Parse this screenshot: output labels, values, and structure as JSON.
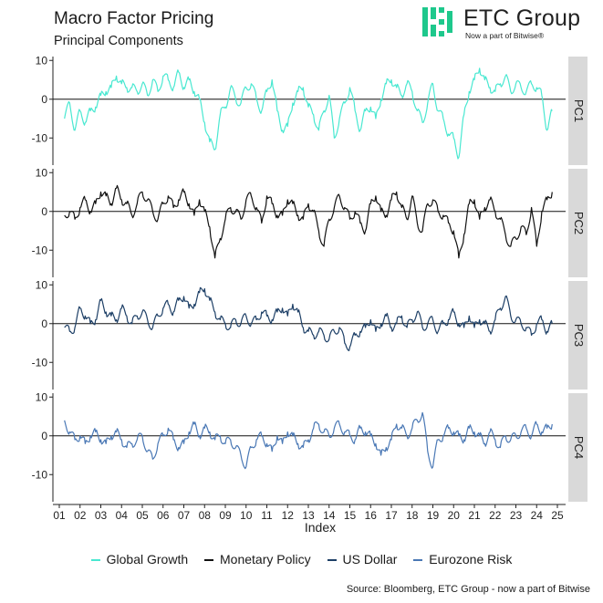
{
  "header": {
    "title": "Macro Factor Pricing",
    "subtitle": "Principal Components"
  },
  "brand": {
    "name": "ETC Group",
    "tagline": "Now a part of Bitwise®",
    "logo_color": "#1ec88c"
  },
  "footer": {
    "source": "Source: Bloomberg, ETC Group - now a part of Bitwise"
  },
  "chart_data": {
    "type": "line",
    "layout": "faceted",
    "xlabel": "Index",
    "x_ticks": [
      "01",
      "02",
      "03",
      "04",
      "05",
      "06",
      "07",
      "08",
      "09",
      "10",
      "11",
      "12",
      "13",
      "14",
      "15",
      "16",
      "17",
      "18",
      "19",
      "20",
      "21",
      "22",
      "23",
      "24",
      "25"
    ],
    "x_range": [
      2001.0,
      2025.0
    ],
    "ylim": [
      -17,
      11
    ],
    "y_ticks": [
      10,
      0,
      -10
    ],
    "grid": false,
    "zero_line": true,
    "legend_position": "bottom",
    "series": [
      {
        "name": "Global Growth",
        "panel": "PC1",
        "color": "#49e8d1",
        "x": [
          2001.25,
          2001.5,
          2001.75,
          2002.0,
          2002.25,
          2002.5,
          2002.75,
          2003.0,
          2003.25,
          2003.5,
          2003.75,
          2004.0,
          2004.25,
          2004.5,
          2004.75,
          2005.0,
          2005.25,
          2005.5,
          2005.75,
          2006.0,
          2006.25,
          2006.5,
          2006.75,
          2007.0,
          2007.25,
          2007.5,
          2007.75,
          2008.0,
          2008.25,
          2008.5,
          2008.75,
          2009.0,
          2009.25,
          2009.5,
          2009.75,
          2010.0,
          2010.25,
          2010.5,
          2010.75,
          2011.0,
          2011.25,
          2011.5,
          2011.75,
          2012.0,
          2012.25,
          2012.5,
          2012.75,
          2013.0,
          2013.25,
          2013.5,
          2013.75,
          2014.0,
          2014.25,
          2014.5,
          2014.75,
          2015.0,
          2015.25,
          2015.5,
          2015.75,
          2016.0,
          2016.25,
          2016.5,
          2016.75,
          2017.0,
          2017.25,
          2017.5,
          2017.75,
          2018.0,
          2018.25,
          2018.5,
          2018.75,
          2019.0,
          2019.25,
          2019.5,
          2019.75,
          2020.0,
          2020.25,
          2020.5,
          2020.75,
          2021.0,
          2021.25,
          2021.5,
          2021.75,
          2022.0,
          2022.25,
          2022.5,
          2022.75,
          2023.0,
          2023.25,
          2023.5,
          2023.75,
          2024.0,
          2024.25,
          2024.5,
          2024.75
        ],
        "values": [
          -5,
          -1,
          -8,
          -3,
          -6,
          -3,
          -2,
          1,
          2,
          3,
          6,
          4,
          3,
          3,
          2,
          4,
          1,
          5,
          2,
          6,
          5,
          3,
          7,
          3,
          5,
          2,
          0,
          -6,
          -11,
          -13,
          -4,
          -2,
          3,
          0,
          -1,
          3,
          4,
          0,
          -3,
          2,
          5,
          -3,
          -8,
          -7,
          -1,
          2,
          3,
          -2,
          -4,
          -8,
          -3,
          1,
          -10,
          -5,
          -1,
          3,
          -3,
          -8,
          -3,
          -2,
          -5,
          0,
          4,
          5,
          3,
          1,
          4,
          2,
          -3,
          -6,
          -1,
          4,
          -3,
          -5,
          -9,
          -10,
          -15,
          -4,
          2,
          5,
          8,
          5,
          3,
          2,
          4,
          6,
          2,
          4,
          3,
          2,
          4,
          3,
          1,
          -8,
          -3
        ]
      },
      {
        "name": "Monetary Policy",
        "panel": "PC2",
        "color": "#111111",
        "x": [
          2001.25,
          2001.5,
          2001.75,
          2002.0,
          2002.25,
          2002.5,
          2002.75,
          2003.0,
          2003.25,
          2003.5,
          2003.75,
          2004.0,
          2004.25,
          2004.5,
          2004.75,
          2005.0,
          2005.25,
          2005.5,
          2005.75,
          2006.0,
          2006.25,
          2006.5,
          2006.75,
          2007.0,
          2007.25,
          2007.5,
          2007.75,
          2008.0,
          2008.25,
          2008.5,
          2008.75,
          2009.0,
          2009.25,
          2009.5,
          2009.75,
          2010.0,
          2010.25,
          2010.5,
          2010.75,
          2011.0,
          2011.25,
          2011.5,
          2011.75,
          2012.0,
          2012.25,
          2012.5,
          2012.75,
          2013.0,
          2013.25,
          2013.5,
          2013.75,
          2014.0,
          2014.25,
          2014.5,
          2014.75,
          2015.0,
          2015.25,
          2015.5,
          2015.75,
          2016.0,
          2016.25,
          2016.5,
          2016.75,
          2017.0,
          2017.25,
          2017.5,
          2017.75,
          2018.0,
          2018.25,
          2018.5,
          2018.75,
          2019.0,
          2019.25,
          2019.5,
          2019.75,
          2020.0,
          2020.25,
          2020.5,
          2020.75,
          2021.0,
          2021.25,
          2021.5,
          2021.75,
          2022.0,
          2022.25,
          2022.5,
          2022.75,
          2023.0,
          2023.25,
          2023.5,
          2023.75,
          2024.0,
          2024.25,
          2024.5,
          2024.75
        ],
        "values": [
          -1,
          0,
          -2,
          1,
          3,
          0,
          2,
          5,
          4,
          2,
          6,
          3,
          2,
          -1,
          2,
          5,
          3,
          0,
          -2,
          2,
          4,
          1,
          3,
          5,
          2,
          -1,
          3,
          0,
          -4,
          -12,
          -7,
          -2,
          1,
          0,
          -2,
          3,
          4,
          1,
          -3,
          4,
          2,
          -1,
          -1,
          3,
          2,
          -1,
          -2,
          2,
          0,
          -5,
          -9,
          -2,
          1,
          4,
          1,
          -2,
          0,
          -3,
          -5,
          2,
          4,
          0,
          -1,
          3,
          5,
          1,
          -2,
          4,
          -3,
          -5,
          2,
          3,
          0,
          -1,
          -3,
          -5,
          -12,
          -6,
          2,
          3,
          -2,
          1,
          3,
          0,
          -2,
          -6,
          -9,
          -7,
          -4,
          -6,
          1,
          -9,
          0,
          3,
          5
        ]
      },
      {
        "name": "US Dollar",
        "panel": "PC3",
        "color": "#1d3f66",
        "x": [
          2001.25,
          2001.5,
          2001.75,
          2002.0,
          2002.25,
          2002.5,
          2002.75,
          2003.0,
          2003.25,
          2003.5,
          2003.75,
          2004.0,
          2004.25,
          2004.5,
          2004.75,
          2005.0,
          2005.25,
          2005.5,
          2005.75,
          2006.0,
          2006.25,
          2006.5,
          2006.75,
          2007.0,
          2007.25,
          2007.5,
          2007.75,
          2008.0,
          2008.25,
          2008.5,
          2008.75,
          2009.0,
          2009.25,
          2009.5,
          2009.75,
          2010.0,
          2010.25,
          2010.5,
          2010.75,
          2011.0,
          2011.25,
          2011.5,
          2011.75,
          2012.0,
          2012.25,
          2012.5,
          2012.75,
          2013.0,
          2013.25,
          2013.5,
          2013.75,
          2014.0,
          2014.25,
          2014.5,
          2014.75,
          2015.0,
          2015.25,
          2015.5,
          2015.75,
          2016.0,
          2016.25,
          2016.5,
          2016.75,
          2017.0,
          2017.25,
          2017.5,
          2017.75,
          2018.0,
          2018.25,
          2018.5,
          2018.75,
          2019.0,
          2019.25,
          2019.5,
          2019.75,
          2020.0,
          2020.25,
          2020.5,
          2020.75,
          2021.0,
          2021.25,
          2021.5,
          2021.75,
          2022.0,
          2022.25,
          2022.5,
          2022.75,
          2023.0,
          2023.25,
          2023.5,
          2023.75,
          2024.0,
          2024.25,
          2024.5,
          2024.75
        ],
        "values": [
          -1,
          -2,
          -1,
          4,
          2,
          0,
          1,
          6,
          3,
          2,
          1,
          4,
          2,
          0,
          2,
          3,
          1,
          -1,
          2,
          4,
          5,
          3,
          6,
          7,
          4,
          5,
          8,
          9,
          6,
          3,
          1,
          0,
          -1,
          1,
          0,
          2,
          0,
          1,
          3,
          2,
          1,
          3,
          4,
          2,
          5,
          3,
          -1,
          -2,
          -3,
          -2,
          -3,
          -4,
          -2,
          -1,
          -5,
          -6,
          -3,
          -2,
          -1,
          1,
          -2,
          0,
          2,
          -1,
          0,
          2,
          -1,
          1,
          3,
          -1,
          0,
          1,
          -2,
          0,
          1,
          3,
          0,
          -1,
          2,
          -1,
          1,
          0,
          -2,
          1,
          4,
          7,
          2,
          1,
          0,
          -1,
          -3,
          0,
          1,
          -2,
          0
        ]
      },
      {
        "name": "Eurozone Risk",
        "panel": "PC4",
        "color": "#4a78b5",
        "x": [
          2001.25,
          2001.5,
          2001.75,
          2002.0,
          2002.25,
          2002.5,
          2002.75,
          2003.0,
          2003.25,
          2003.5,
          2003.75,
          2004.0,
          2004.25,
          2004.5,
          2004.75,
          2005.0,
          2005.25,
          2005.5,
          2005.75,
          2006.0,
          2006.25,
          2006.5,
          2006.75,
          2007.0,
          2007.25,
          2007.5,
          2007.75,
          2008.0,
          2008.25,
          2008.5,
          2008.75,
          2009.0,
          2009.25,
          2009.5,
          2009.75,
          2010.0,
          2010.25,
          2010.5,
          2010.75,
          2011.0,
          2011.25,
          2011.5,
          2011.75,
          2012.0,
          2012.25,
          2012.5,
          2012.75,
          2013.0,
          2013.25,
          2013.5,
          2013.75,
          2014.0,
          2014.25,
          2014.5,
          2014.75,
          2015.0,
          2015.25,
          2015.5,
          2015.75,
          2016.0,
          2016.25,
          2016.5,
          2016.75,
          2017.0,
          2017.25,
          2017.5,
          2017.75,
          2018.0,
          2018.25,
          2018.5,
          2018.75,
          2019.0,
          2019.25,
          2019.5,
          2019.75,
          2020.0,
          2020.25,
          2020.5,
          2020.75,
          2021.0,
          2021.25,
          2021.5,
          2021.75,
          2022.0,
          2022.25,
          2022.5,
          2022.75,
          2023.0,
          2023.25,
          2023.5,
          2023.75,
          2024.0,
          2024.25,
          2024.5,
          2024.75
        ],
        "values": [
          4,
          1,
          -1,
          0,
          -2,
          0,
          1,
          -1,
          -2,
          0,
          1,
          -1,
          -3,
          -2,
          -1,
          0,
          -4,
          -6,
          -2,
          0,
          2,
          -1,
          -3,
          -2,
          1,
          3,
          0,
          2,
          1,
          -1,
          0,
          -2,
          -1,
          -3,
          -5,
          -8,
          -3,
          -1,
          0,
          -2,
          -4,
          0,
          -2,
          1,
          0,
          -2,
          -3,
          -1,
          2,
          3,
          1,
          0,
          2,
          3,
          1,
          0,
          -1,
          2,
          1,
          0,
          -2,
          -5,
          -3,
          -1,
          3,
          2,
          0,
          2,
          4,
          6,
          -4,
          -8,
          -1,
          0,
          2,
          1,
          0,
          -1,
          2,
          1,
          0,
          -2,
          1,
          -1,
          -3,
          0,
          -1,
          0,
          1,
          2,
          0,
          3,
          1,
          2,
          3
        ]
      }
    ]
  }
}
